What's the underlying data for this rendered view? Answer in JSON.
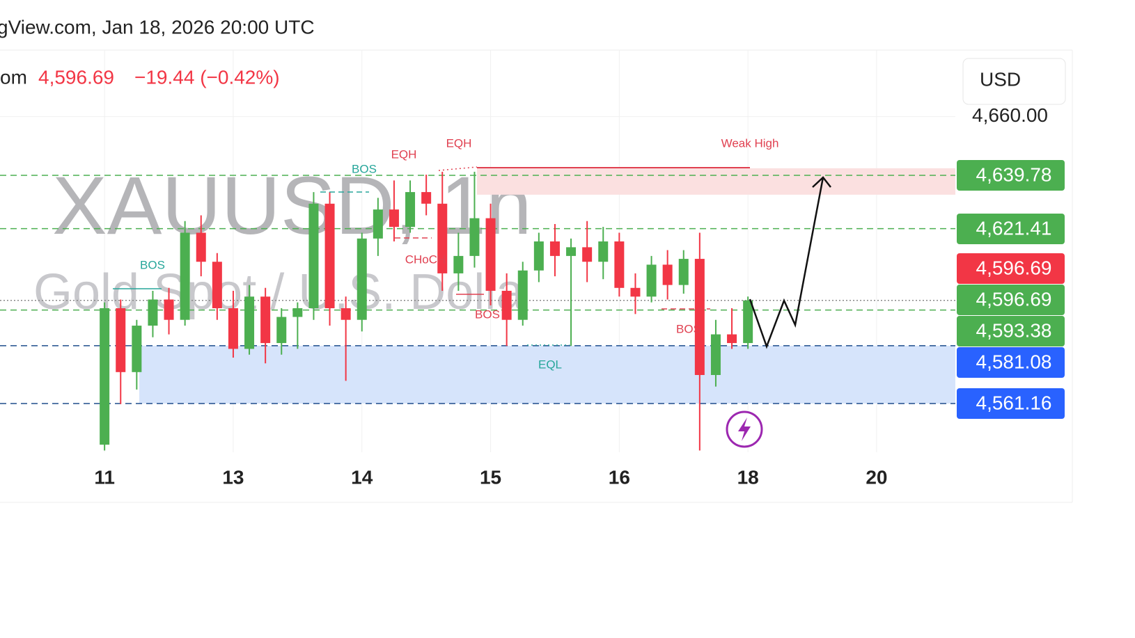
{
  "chart_data": {
    "type": "candlestick",
    "header": "gView.com, Jan 18, 2026 20:00 UTC",
    "symbol_fragment": "om",
    "last_price": {
      "value": 4596.69,
      "label": "4,596.69"
    },
    "change": "−19.44 (−0.42%)",
    "watermark": [
      "XAUUSD, 1h",
      "Gold Spot / U.S. Dolla"
    ],
    "currency": "USD",
    "up_color": "#4caf50",
    "down_color": "#f23645",
    "grid": true,
    "ylim": [
      4544.4,
      4682.9
    ],
    "yticks": [
      {
        "value": 4660,
        "label": "4,660.00"
      }
    ],
    "categories": [
      null,
      null,
      null,
      null,
      null,
      null,
      "11",
      null,
      null,
      null,
      null,
      null,
      null,
      null,
      "13",
      null,
      null,
      null,
      null,
      null,
      null,
      null,
      "14",
      null,
      null,
      null,
      null,
      null,
      null,
      null,
      "15",
      null,
      null,
      null,
      null,
      null,
      null,
      null,
      "16",
      null,
      null,
      null,
      null,
      null,
      null,
      null,
      "18",
      null,
      null,
      null,
      null,
      null,
      null,
      null,
      "20",
      null,
      null,
      null,
      null
    ],
    "open": [
      null,
      null,
      null,
      null,
      null,
      null,
      4547,
      4594,
      4572,
      4588,
      4597,
      4590,
      4620,
      4610,
      4594,
      4580,
      4598,
      4582,
      4591,
      4594,
      4630,
      4594,
      4590,
      4618,
      4628,
      4622,
      4634,
      4630,
      4606,
      4612,
      4625,
      4600,
      4590,
      4607,
      4617,
      4612,
      4615,
      4610,
      4617,
      4601,
      4598,
      4609,
      4602,
      4611,
      4571,
      4585,
      4582,
      null,
      null,
      null,
      null,
      null,
      null,
      null,
      null,
      null,
      null,
      null,
      null
    ],
    "high": [
      null,
      null,
      null,
      null,
      null,
      null,
      4596,
      4597,
      4590,
      4600,
      4601,
      4624,
      4626,
      4613,
      4600,
      4602,
      4601,
      4594,
      4596,
      4634,
      4634,
      4598,
      4620,
      4632,
      4638,
      4638,
      4640,
      4641,
      4620,
      4641,
      4630,
      4606,
      4610,
      4620,
      4623,
      4618,
      4624,
      4622,
      4620,
      4606,
      4612,
      4614,
      4614,
      4620,
      4590,
      4594,
      4598,
      null,
      null,
      null,
      null,
      null,
      null,
      null,
      null,
      null,
      null,
      null,
      null
    ],
    "low": [
      null,
      null,
      null,
      null,
      null,
      null,
      4545,
      4561,
      4566,
      4584,
      4585,
      4588,
      4605,
      4590,
      4577,
      4578,
      4575,
      4578,
      4580,
      4590,
      4588,
      4569,
      4586,
      4612,
      4617,
      4620,
      4626,
      4600,
      4600,
      4608,
      4595,
      4581,
      4588,
      4603,
      4605,
      4581,
      4603,
      4604,
      4598,
      4592,
      4596,
      4597,
      4599,
      4545,
      4567,
      4580,
      4580,
      null,
      null,
      null,
      null,
      null,
      null,
      null,
      null,
      null,
      null,
      null,
      null
    ],
    "close": [
      null,
      null,
      null,
      null,
      null,
      null,
      4594,
      4572,
      4588,
      4597,
      4590,
      4620,
      4610,
      4594,
      4580,
      4598,
      4582,
      4591,
      4594,
      4630,
      4594,
      4590,
      4618,
      4628,
      4622,
      4634,
      4630,
      4606,
      4612,
      4625,
      4600,
      4590,
      4607,
      4617,
      4612,
      4615,
      4610,
      4617,
      4601,
      4598,
      4609,
      4602,
      4611,
      4571,
      4585,
      4582,
      4596.69,
      null,
      null,
      null,
      null,
      null,
      null,
      null,
      null,
      null,
      null,
      null,
      null
    ],
    "price_levels": [
      {
        "value": 4639.78,
        "label": "4,639.78",
        "color": "#4caf50",
        "line_color": "#4caf50",
        "style": "dashed"
      },
      {
        "value": 4621.41,
        "label": "4,621.41",
        "color": "#4caf50",
        "line_color": "#4caf50",
        "style": "dashed"
      },
      {
        "value": 4596.69,
        "label": "4,596.69",
        "color": "#f23645",
        "line_color": "#888888",
        "style": "dotted"
      },
      {
        "value": 4596.69,
        "label": "4,596.69",
        "color": "#4caf50",
        "line_color": "#888888",
        "style": "dotted"
      },
      {
        "value": 4593.38,
        "label": "4,593.38",
        "color": "#4caf50",
        "line_color": "#4caf50",
        "style": "dashed"
      },
      {
        "value": 4581.08,
        "label": "4,581.08",
        "color": "#2962ff",
        "line_color": "#1e4d8c",
        "style": "dashed"
      },
      {
        "value": 4561.16,
        "label": "4,561.16",
        "color": "#2962ff",
        "line_color": "#1e4d8c",
        "style": "dashed"
      }
    ],
    "zones": [
      {
        "values": [
          4642.2,
          4633.1
        ],
        "color": "#fbe0e0"
      },
      {
        "values": [
          4581.08,
          4561.16
        ],
        "color": "#d6e4fb"
      }
    ],
    "annotations": [
      {
        "text": "BOS",
        "color": "#26a69a"
      },
      {
        "text": "EQH",
        "color": "#e04050"
      },
      {
        "text": "EQH",
        "color": "#e04050"
      },
      {
        "text": "Weak High",
        "color": "#e04050"
      },
      {
        "text": "BOS",
        "color": "#26a69a"
      },
      {
        "text": "CHoCH",
        "color": "#e04050"
      },
      {
        "text": "BOS",
        "color": "#e04050"
      },
      {
        "text": "EQL",
        "color": "#26a69a"
      },
      {
        "text": "BOS",
        "color": "#e04050"
      }
    ]
  }
}
